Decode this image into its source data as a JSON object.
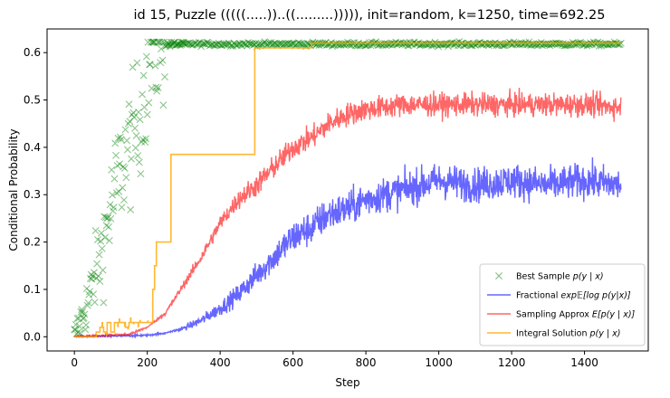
{
  "chart_data": {
    "type": "line",
    "title": "id 15, Puzzle (((((.....))..((.........))))), init=random, k=1250, time=692.25",
    "xlabel": "Step",
    "ylabel": "Conditional Probability",
    "xlim": [
      -75,
      1575
    ],
    "ylim": [
      -0.03,
      0.65
    ],
    "xticks": [
      0,
      200,
      400,
      600,
      800,
      1000,
      1200,
      1400
    ],
    "yticks": [
      0.0,
      0.1,
      0.2,
      0.3,
      0.4,
      0.5,
      0.6
    ],
    "xtick_labels": [
      "0",
      "200",
      "400",
      "600",
      "800",
      "1000",
      "1200",
      "1400"
    ],
    "ytick_labels": [
      "0.0",
      "0.1",
      "0.2",
      "0.3",
      "0.4",
      "0.5",
      "0.6"
    ],
    "grid": false,
    "legend_position": "lower-right",
    "x_max": 1500,
    "series": [
      {
        "name": "Best Sample p(y | x)",
        "legend": "Best Sample",
        "legend_math": "p(y | x)",
        "style": "scatter-x",
        "color": "#008000",
        "x": [
          0,
          10,
          20,
          30,
          40,
          50,
          60,
          70,
          80,
          90,
          100,
          110,
          120,
          130,
          140,
          150,
          160,
          170,
          180,
          190,
          200,
          210,
          220,
          230,
          240,
          250,
          270,
          300,
          400,
          500,
          600,
          700,
          800,
          900,
          1000,
          1100,
          1200,
          1300,
          1400,
          1500
        ],
        "y": [
          0.0,
          0.02,
          0.04,
          0.06,
          0.08,
          0.11,
          0.14,
          0.17,
          0.2,
          0.24,
          0.27,
          0.3,
          0.33,
          0.36,
          0.38,
          0.4,
          0.42,
          0.44,
          0.47,
          0.51,
          0.55,
          0.58,
          0.6,
          0.61,
          0.615,
          0.617,
          0.618,
          0.618,
          0.618,
          0.618,
          0.618,
          0.618,
          0.618,
          0.618,
          0.618,
          0.618,
          0.618,
          0.618,
          0.618,
          0.618
        ]
      },
      {
        "name": "Fractional exp E[log p(y|x)]",
        "legend": "Fractional",
        "legend_math": "exp𝔼[log p(y|x)]",
        "style": "line",
        "color": "#0000ff",
        "x": [
          0,
          200,
          250,
          300,
          350,
          400,
          450,
          500,
          550,
          600,
          650,
          700,
          750,
          800,
          850,
          900,
          950,
          1000,
          1100,
          1200,
          1300,
          1400,
          1500
        ],
        "y": [
          0.0,
          0.003,
          0.008,
          0.018,
          0.035,
          0.06,
          0.09,
          0.13,
          0.17,
          0.21,
          0.23,
          0.26,
          0.27,
          0.29,
          0.3,
          0.31,
          0.32,
          0.33,
          0.32,
          0.33,
          0.32,
          0.33,
          0.32
        ]
      },
      {
        "name": "Sampling Approx E[p(y | x)]",
        "legend": "Sampling Approx",
        "legend_math": "E[p(y | x)]",
        "style": "line",
        "color": "#ff0000",
        "x": [
          0,
          150,
          200,
          250,
          300,
          350,
          400,
          450,
          500,
          550,
          600,
          650,
          700,
          750,
          800,
          850,
          900,
          1000,
          1100,
          1200,
          1300,
          1400,
          1500
        ],
        "y": [
          0.0,
          0.005,
          0.02,
          0.05,
          0.11,
          0.17,
          0.24,
          0.29,
          0.32,
          0.36,
          0.4,
          0.42,
          0.45,
          0.47,
          0.48,
          0.485,
          0.49,
          0.49,
          0.49,
          0.49,
          0.49,
          0.49,
          0.485
        ]
      },
      {
        "name": "Integral Solution p(y | x)",
        "legend": "Integral Solution",
        "legend_math": "p(y | x)",
        "style": "step",
        "color": "#ffa500",
        "x": [
          0,
          60,
          70,
          80,
          90,
          100,
          110,
          140,
          150,
          160,
          210,
          215,
          220,
          225,
          265,
          495,
          650,
          1500
        ],
        "y": [
          0.0,
          0.01,
          0.02,
          0.01,
          0.03,
          0.01,
          0.03,
          0.02,
          0.03,
          0.03,
          0.03,
          0.1,
          0.15,
          0.2,
          0.385,
          0.61,
          0.62,
          0.62
        ]
      }
    ]
  }
}
